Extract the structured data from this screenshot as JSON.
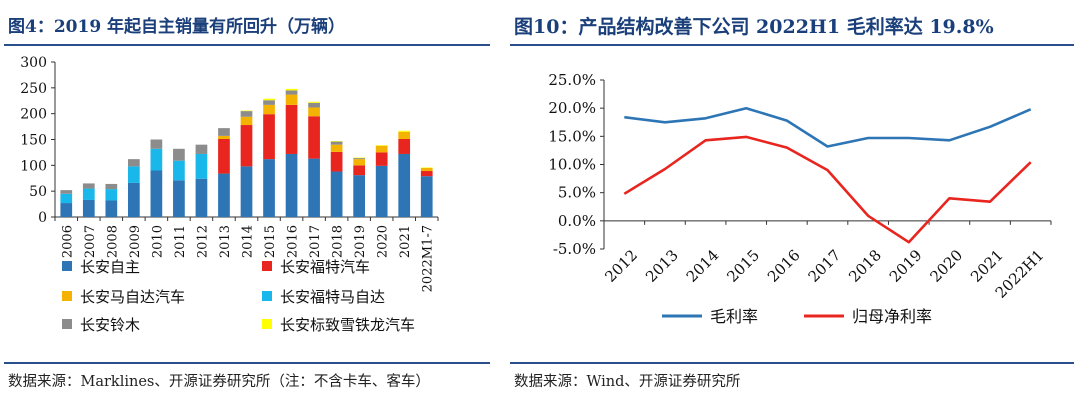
{
  "charts": [
    {
      "title": "图4：2019 年起自主销量有所回升（万辆）",
      "source": "数据来源：Marklines、开源证券研究所（注：不含卡车、客车）"
    },
    {
      "title": "图10：产品结构改善下公司 2022H1 毛利率达 19.8%",
      "source": "数据来源：Wind、开源证券研究所"
    }
  ],
  "chart_data": [
    {
      "type": "bar",
      "stacked": true,
      "title": "2019 年起自主销量有所回升（万辆）",
      "categories": [
        "2006",
        "2007",
        "2008",
        "2009",
        "2010",
        "2011",
        "2012",
        "2013",
        "2014",
        "2015",
        "2016",
        "2017",
        "2018",
        "2019",
        "2020",
        "2021",
        "2022M1-7"
      ],
      "ylim": [
        0,
        300
      ],
      "yticks": [
        0,
        50,
        100,
        150,
        200,
        250,
        300
      ],
      "colors": [
        "#2e75b6",
        "#e8251f",
        "#f5b301",
        "#1ab7ea",
        "#8c8c8c",
        "#ffff00"
      ],
      "series": [
        {
          "name": "长安自主",
          "values": [
            27,
            33,
            32,
            66,
            90,
            71,
            74,
            84,
            98,
            112,
            122,
            113,
            88,
            81,
            99,
            122,
            79
          ]
        },
        {
          "name": "长安福特汽车",
          "values": [
            0,
            0,
            0,
            0,
            0,
            0,
            0,
            67,
            80,
            87,
            95,
            82,
            38,
            19,
            26,
            29,
            10
          ]
        },
        {
          "name": "长安马自达汽车",
          "values": [
            0,
            0,
            0,
            0,
            0,
            0,
            0,
            6,
            16,
            18,
            20,
            17,
            14,
            12,
            13,
            14,
            6
          ]
        },
        {
          "name": "长安福特马自达",
          "values": [
            18,
            22,
            22,
            32,
            42,
            38,
            48,
            0,
            0,
            0,
            0,
            0,
            0,
            0,
            0,
            0,
            0
          ]
        },
        {
          "name": "长安铃木",
          "values": [
            7,
            10,
            10,
            14,
            18,
            23,
            18,
            15,
            11,
            9,
            8,
            9,
            6,
            2,
            0,
            0,
            0
          ]
        },
        {
          "name": "长安标致雪铁龙汽车",
          "values": [
            0,
            0,
            0,
            0,
            0,
            0,
            0,
            0,
            1,
            3,
            3,
            2,
            1,
            1,
            1,
            2,
            1
          ]
        }
      ]
    },
    {
      "type": "line",
      "categories": [
        "2012",
        "2013",
        "2014",
        "2015",
        "2016",
        "2017",
        "2018",
        "2019",
        "2020",
        "2021",
        "2022H1"
      ],
      "ylim": [
        -5,
        25
      ],
      "ytick_labels": [
        "25.0%",
        "20.0%",
        "15.0%",
        "10.0%",
        "5.0%",
        "0.0%",
        "-5.0%"
      ],
      "yticks": [
        25,
        20,
        15,
        10,
        5,
        0,
        -5
      ],
      "series": [
        {
          "name": "毛利率",
          "color": "#2e75b6",
          "values": [
            18.4,
            17.5,
            18.2,
            20.0,
            17.8,
            13.2,
            14.7,
            14.7,
            14.3,
            16.7,
            19.8
          ]
        },
        {
          "name": "归母净利率",
          "color": "#e8251f",
          "values": [
            4.8,
            9.2,
            14.3,
            14.9,
            13.0,
            9.0,
            0.9,
            -3.8,
            4.0,
            3.4,
            10.4
          ]
        }
      ]
    }
  ]
}
